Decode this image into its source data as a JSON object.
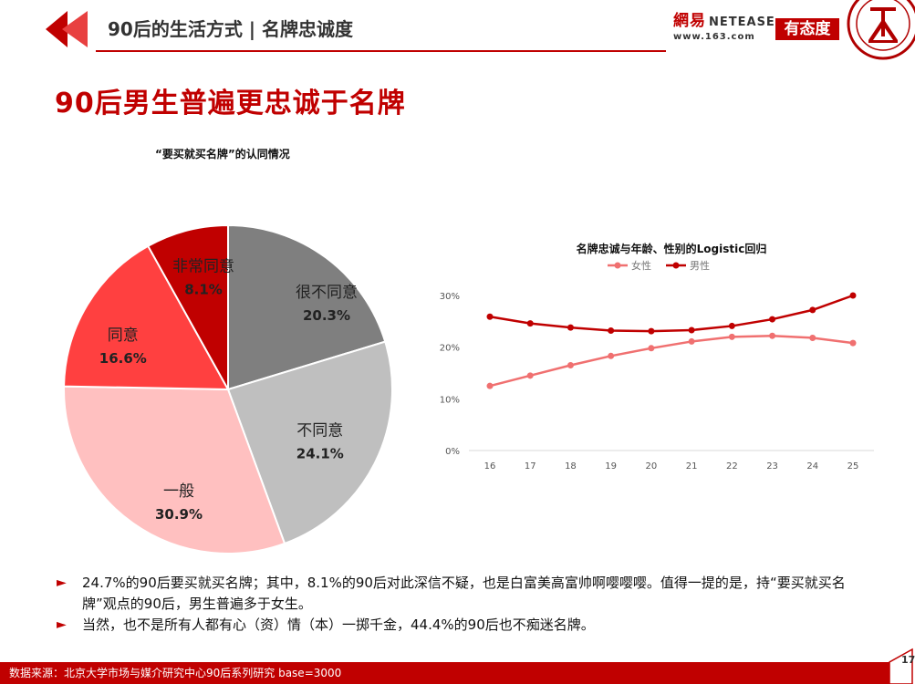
{
  "header": {
    "title": "90后的生活方式 | 名牌忠诚度",
    "netease_logo_cn": "網易",
    "netease_logo_en": "NETEASE",
    "netease_url": "www.163.com",
    "youtaidu": "有态度",
    "seal_icon": "peking-university-seal"
  },
  "main_title": "90后男生普遍更忠诚于名牌",
  "chart_data": [
    {
      "type": "pie",
      "title": "“要买就买名牌”的认同情况",
      "slices": [
        {
          "label": "很不同意",
          "value": 20.3,
          "value_label": "20.3%",
          "color": "#7f7f7f"
        },
        {
          "label": "不同意",
          "value": 24.1,
          "value_label": "24.1%",
          "color": "#bfbfbf"
        },
        {
          "label": "一般",
          "value": 30.9,
          "value_label": "30.9%",
          "color": "#ffc0c0"
        },
        {
          "label": "同意",
          "value": 16.6,
          "value_label": "16.6%",
          "color": "#ff4040"
        },
        {
          "label": "非常同意",
          "value": 8.1,
          "value_label": "8.1%",
          "color": "#c00000"
        }
      ]
    },
    {
      "type": "line",
      "title": "名牌忠诚与年龄、性别的Logistic回归",
      "categories": [
        "16",
        "17",
        "18",
        "19",
        "20",
        "21",
        "22",
        "23",
        "24",
        "25"
      ],
      "series": [
        {
          "name": "女性",
          "color": "#f07070",
          "values": [
            12.5,
            14.5,
            16.5,
            18.3,
            19.8,
            21.1,
            22.0,
            22.2,
            21.8,
            20.8
          ]
        },
        {
          "name": "男性",
          "color": "#c00000",
          "values": [
            25.9,
            24.6,
            23.8,
            23.2,
            23.1,
            23.3,
            24.1,
            25.4,
            27.2,
            30.0
          ]
        }
      ],
      "ylim": [
        0,
        30
      ],
      "yticks": [
        "0%",
        "10%",
        "20%",
        "30%"
      ],
      "legend_position": "top"
    }
  ],
  "bullets": [
    "24.7%的90后要买就买名牌；其中，8.1%的90后对此深信不疑，也是白富美高富帅啊嘤嘤嘤。值得一提的是，持“要买就买名牌”观点的90后，男生普遍多于女生。",
    "当然，也不是所有人都有心（资）情（本）一掷千金，44.4%的90后也不痴迷名牌。"
  ],
  "bullet_icon": "triangle-right-icon",
  "footer": {
    "source": "数据来源：北京大学市场与媒介研究中心90后系列研究 base=3000",
    "page_number": "17"
  }
}
